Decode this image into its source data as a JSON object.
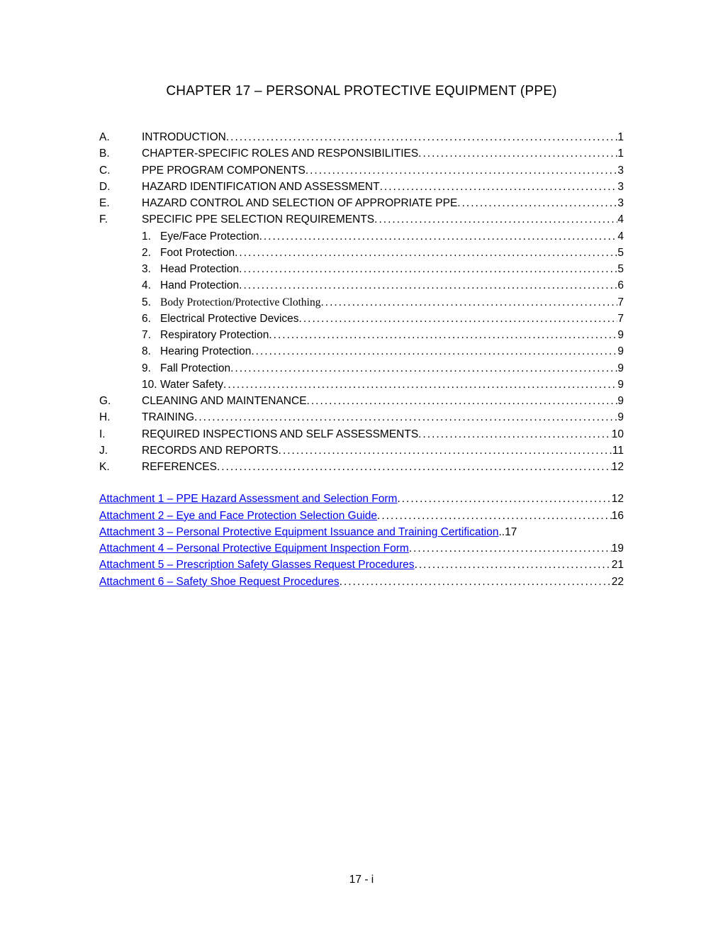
{
  "colors": {
    "text": "#000000",
    "link": "#0000ee",
    "background": "#ffffff"
  },
  "title": "CHAPTER 17 – PERSONAL PROTECTIVE EQUIPMENT (PPE)",
  "toc": [
    {
      "letter": "A.",
      "label": "INTRODUCTION",
      "page": "1"
    },
    {
      "letter": "B.",
      "label": "CHAPTER-SPECIFIC ROLES AND RESPONSIBILITIES",
      "page": "1"
    },
    {
      "letter": "C.",
      "label": "PPE PROGRAM COMPONENTS",
      "page": "3"
    },
    {
      "letter": "D.",
      "label": "HAZARD IDENTIFICATION AND ASSESSMENT",
      "page": "3"
    },
    {
      "letter": "E.",
      "label": "HAZARD CONTROL AND SELECTION OF APPROPRIATE PPE",
      "page": "3"
    },
    {
      "letter": "F.",
      "label": "SPECIFIC PPE SELECTION REQUIREMENTS",
      "page": "4",
      "subitems": [
        {
          "num": "1.",
          "label": "Eye/Face Protection",
          "page": "4"
        },
        {
          "num": "2.",
          "label": "Foot Protection",
          "page": "5"
        },
        {
          "num": "3.",
          "label": "Head Protection",
          "page": "5"
        },
        {
          "num": "4.",
          "label": "Hand Protection",
          "page": "6"
        },
        {
          "num": "5.",
          "label": "Body Protection/Protective Clothing",
          "page": "7",
          "serif": true
        },
        {
          "num": "6.",
          "label": "Electrical Protective Devices",
          "page": "7"
        },
        {
          "num": "7.",
          "label": "Respiratory Protection",
          "page": "9"
        },
        {
          "num": "8.",
          "label": "Hearing Protection",
          "page": "9"
        },
        {
          "num": "9.",
          "label": "Fall Protection",
          "page": "9"
        },
        {
          "num": "10.",
          "label": "Water Safety",
          "page": "9"
        }
      ]
    },
    {
      "letter": "G.",
      "label": "CLEANING AND MAINTENANCE",
      "page": "9"
    },
    {
      "letter": "H.",
      "label": "TRAINING",
      "page": "9"
    },
    {
      "letter": "I.",
      "label": "REQUIRED INSPECTIONS AND SELF ASSESSMENTS",
      "page": "10"
    },
    {
      "letter": "J.",
      "label": "RECORDS AND REPORTS",
      "page": "11"
    },
    {
      "letter": "K.",
      "label": "REFERENCES",
      "page": "12"
    }
  ],
  "attachments": [
    {
      "label": "Attachment 1 – PPE Hazard Assessment and Selection Form",
      "page": "12"
    },
    {
      "label": "Attachment 2 – Eye and Face Protection Selection Guide",
      "page": "16"
    },
    {
      "label": "Attachment 3 – Personal Protective Equipment Issuance and Training Certification",
      "sep": "..",
      "page": "17"
    },
    {
      "label": "Attachment 4 – Personal Protective Equipment Inspection Form",
      "page": "19"
    },
    {
      "label": "Attachment 5 – Prescription Safety Glasses Request Procedures",
      "page": "21"
    },
    {
      "label": "Attachment 6 – Safety Shoe Request Procedures",
      "page": "22"
    }
  ],
  "footer": "17 - i"
}
